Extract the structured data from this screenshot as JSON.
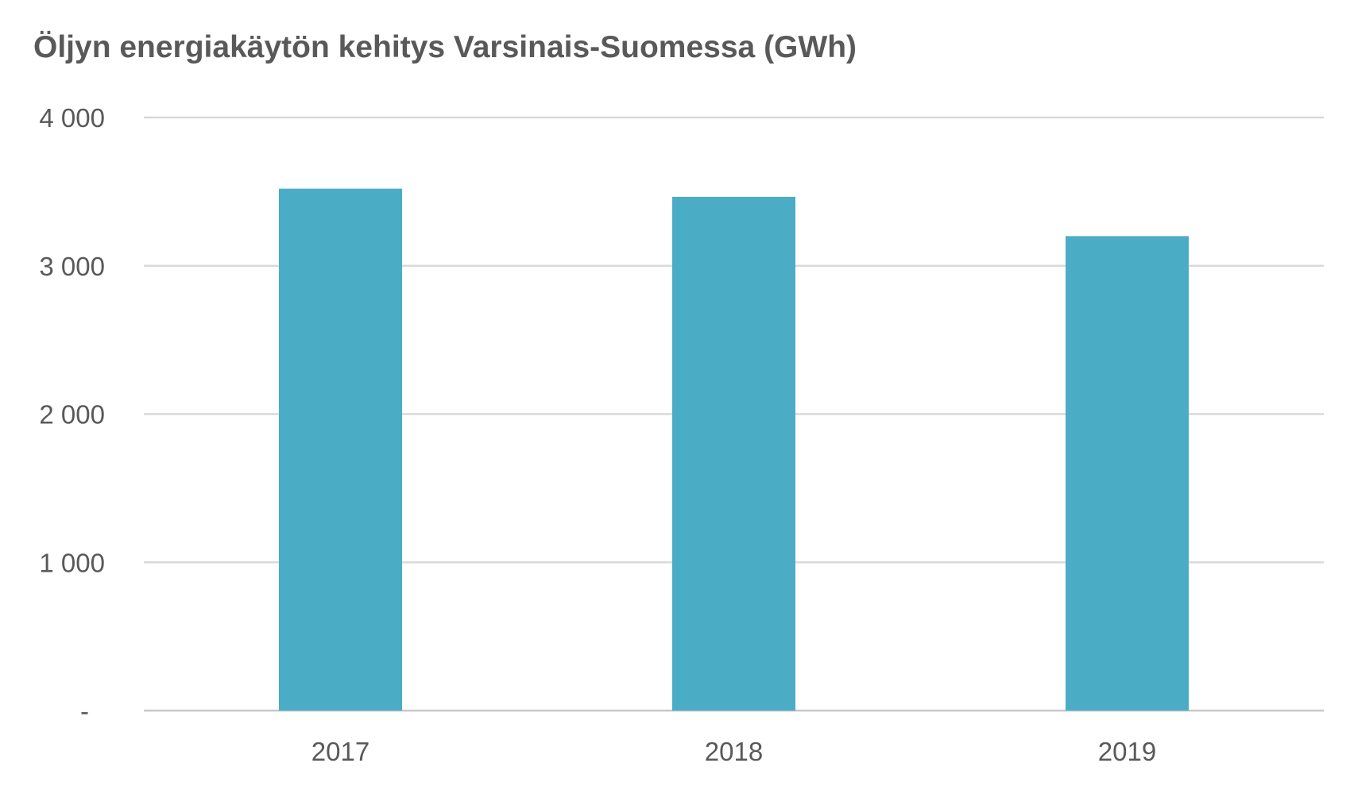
{
  "chart_data": {
    "type": "bar",
    "title": "Öljyn energiakäytön kehitys Varsinais-Suomessa (GWh)",
    "categories": [
      "2017",
      "2018",
      "2019"
    ],
    "values": [
      3520,
      3465,
      3200
    ],
    "ylim": [
      0,
      4000
    ],
    "yticks": [
      {
        "value": 0,
        "label": "-"
      },
      {
        "value": 1000,
        "label": "1 000"
      },
      {
        "value": 2000,
        "label": "2 000"
      },
      {
        "value": 3000,
        "label": "3 000"
      },
      {
        "value": 4000,
        "label": "4 000"
      }
    ],
    "bar_color": "#4BACC6",
    "grid": true,
    "legend": "none"
  }
}
